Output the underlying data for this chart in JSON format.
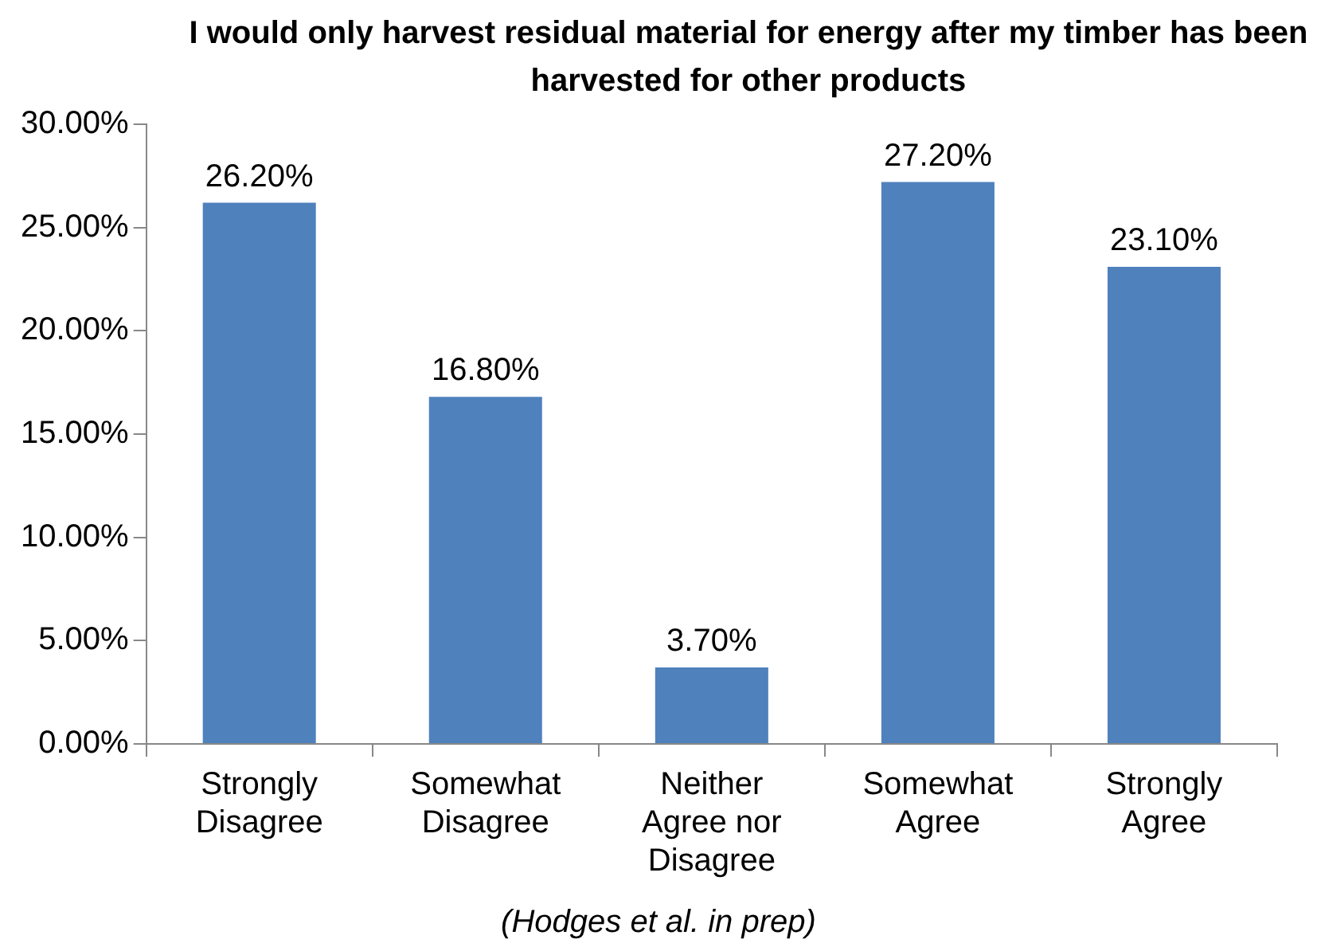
{
  "chart_data": {
    "type": "bar",
    "title": "I would only harvest residual material for energy after my timber has been harvested for other products",
    "categories": [
      "Strongly Disagree",
      "Somewhat Disagree",
      "Neither Agree nor Disagree",
      "Somewhat Agree",
      "Strongly Agree"
    ],
    "values": [
      26.2,
      16.8,
      3.7,
      27.2,
      23.1
    ],
    "value_labels": [
      "26.20%",
      "16.80%",
      "3.70%",
      "27.20%",
      "23.10%"
    ],
    "color": "#4f81bd",
    "ylim": [
      0,
      30
    ],
    "yticks": [
      {
        "value": 0,
        "label": "0.00%"
      },
      {
        "value": 5,
        "label": "5.00%"
      },
      {
        "value": 10,
        "label": "10.00%"
      },
      {
        "value": 15,
        "label": "15.00%"
      },
      {
        "value": 20,
        "label": "20.00%"
      },
      {
        "value": 25,
        "label": "25.00%"
      },
      {
        "value": 30,
        "label": "30.00%"
      }
    ],
    "grid": false,
    "legend": false,
    "annotations": [
      "(Hodges et al. in prep)"
    ]
  }
}
